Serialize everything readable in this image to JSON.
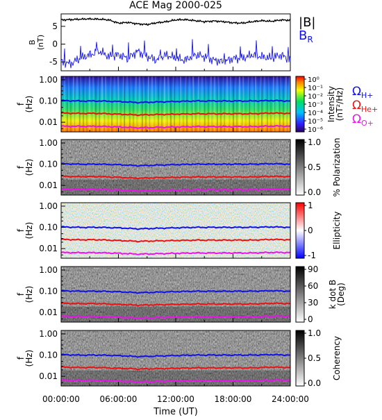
{
  "chart_data": {
    "type": "line",
    "title": "ACE Mag 2000-025",
    "xlabel": "Time (UT)",
    "x_ticks": [
      "00:00:00",
      "06:00:00",
      "12:00:00",
      "18:00:00",
      "24:00:00"
    ],
    "x_range_hours": [
      0,
      24
    ],
    "panels": [
      {
        "id": "b",
        "ylabel": "B\n(nT)",
        "y_ticks": [
          "5",
          "0",
          "-5"
        ],
        "ylim": [
          -7.5,
          8.5
        ],
        "legend": [
          {
            "label": "|B|",
            "color": "#000000"
          },
          {
            "label": "B",
            "sub": "R",
            "color": "#1010ee"
          }
        ],
        "series": [
          {
            "label": "|B|",
            "color": "#000000",
            "x_hours": [
              0,
              1,
              2,
              3,
              4,
              5,
              6,
              7,
              8,
              9,
              10,
              11,
              12,
              13,
              14,
              15,
              16,
              17,
              18,
              19,
              20,
              21,
              22,
              23,
              24
            ],
            "values": [
              6.8,
              6.9,
              7.0,
              7.1,
              7.0,
              6.8,
              5.9,
              6.1,
              5.7,
              5.5,
              6.0,
              6.3,
              6.8,
              6.9,
              6.6,
              6.3,
              6.5,
              6.3,
              6.0,
              5.9,
              6.3,
              6.6,
              6.4,
              6.8,
              6.7
            ]
          },
          {
            "label": "B_R",
            "color": "#1010ee",
            "x_hours": [
              0,
              1,
              2,
              3,
              4,
              5,
              6,
              7,
              8,
              9,
              10,
              11,
              12,
              13,
              14,
              15,
              16,
              17,
              18,
              19,
              20,
              21,
              22,
              23,
              24
            ],
            "values": [
              -5.0,
              -5.5,
              -4.0,
              -3.0,
              -2.0,
              -3.5,
              -3.0,
              -4.0,
              -2.0,
              -3.5,
              -4.5,
              -3.0,
              -4.0,
              -4.5,
              -3.0,
              -3.5,
              -4.5,
              -5.0,
              -4.0,
              -4.0,
              -3.0,
              -3.5,
              -4.0,
              -3.0,
              -4.5
            ]
          }
        ]
      },
      {
        "id": "intensity",
        "ylabel": "f\n(Hz)",
        "y_ticks": [
          "1.00",
          "0.10",
          "0.01"
        ],
        "colorbar": {
          "ticks": [
            "10⁰",
            "10⁻¹",
            "10⁻²",
            "10⁻³",
            "10⁻⁴",
            "10⁻⁵",
            "10⁻⁶"
          ],
          "label": "Intensity\n(nT²/Hz)"
        },
        "cyclotron_legend": [
          {
            "label": "Ω",
            "sub": "H+",
            "color": "#1010ee"
          },
          {
            "label": "Ω",
            "sub": "He+",
            "color": "#ee1010"
          },
          {
            "label": "Ω",
            "sub": "O+",
            "color": "#ee10ee"
          }
        ]
      },
      {
        "id": "polarization",
        "ylabel": "f\n(Hz)",
        "y_ticks": [
          "1.00",
          "0.10",
          "0.01"
        ],
        "colorbar": {
          "ticks": [
            "1.0",
            "0.5",
            "0.0"
          ],
          "label": "% Polarization"
        }
      },
      {
        "id": "ellipticity",
        "ylabel": "f\n(Hz)",
        "y_ticks": [
          "1.00",
          "0.10",
          "0.01"
        ],
        "colorbar": {
          "ticks": [
            "1",
            "0",
            "-1"
          ],
          "label": "Ellipticity"
        }
      },
      {
        "id": "kdotb",
        "ylabel": "f\n(Hz)",
        "y_ticks": [
          "1.00",
          "0.10",
          "0.01"
        ],
        "colorbar": {
          "ticks": [
            "90",
            "60",
            "30",
            "0"
          ],
          "label": "k dot B\n(Deg)"
        }
      },
      {
        "id": "coherency",
        "ylabel": "f\n(Hz)",
        "y_ticks": [
          "1.00",
          "0.10",
          "0.01"
        ],
        "colorbar": {
          "ticks": [
            "1.0",
            "0.5",
            "0.0"
          ],
          "label": "Coherency"
        }
      }
    ],
    "cyclotron_frequencies_hz": {
      "x_hours": [
        0,
        2,
        4,
        6,
        8,
        10,
        12,
        14,
        16,
        18,
        20,
        22,
        24
      ],
      "H+": [
        0.105,
        0.1,
        0.1,
        0.095,
        0.085,
        0.09,
        0.095,
        0.1,
        0.1,
        0.1,
        0.1,
        0.105,
        0.1
      ],
      "He+": [
        0.027,
        0.026,
        0.026,
        0.024,
        0.022,
        0.023,
        0.024,
        0.025,
        0.025,
        0.025,
        0.025,
        0.027,
        0.026
      ],
      "O+": [
        0.0065,
        0.0064,
        0.0064,
        0.006,
        0.0055,
        0.0057,
        0.006,
        0.0062,
        0.0062,
        0.0062,
        0.0062,
        0.0066,
        0.0065
      ]
    }
  }
}
